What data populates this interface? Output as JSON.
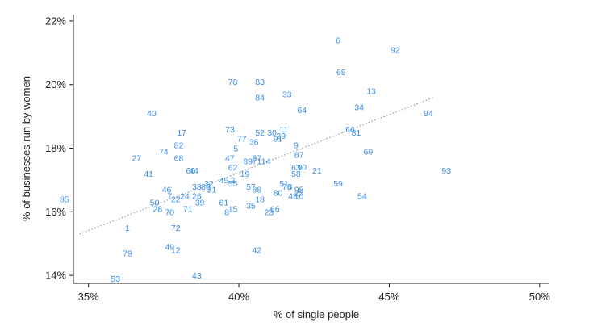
{
  "chart_data": {
    "type": "scatter",
    "title": "",
    "xlabel": "% of single people",
    "ylabel": "% of businesses run by women",
    "xlim": [
      34.5,
      50.3
    ],
    "ylim": [
      13.75,
      22.2
    ],
    "xticks": [
      35,
      40,
      45,
      50
    ],
    "xtick_labels": [
      "35%",
      "40%",
      "45%",
      "50%"
    ],
    "yticks": [
      14,
      16,
      18,
      20,
      22
    ],
    "ytick_labels": [
      "14%",
      "16%",
      "18%",
      "20%",
      "22%"
    ],
    "grid": false,
    "marker": "text-label",
    "colors": {
      "points": "#3a8ee6",
      "trend": "#8a8a8a",
      "axis": "#222222"
    },
    "trendline": {
      "style": "dotted",
      "x": [
        34.7,
        46.5
      ],
      "y": [
        15.3,
        19.6
      ]
    },
    "points": [
      {
        "label": "6",
        "x": 43.3,
        "y": 21.4
      },
      {
        "label": "92",
        "x": 45.2,
        "y": 21.1
      },
      {
        "label": "65",
        "x": 43.4,
        "y": 20.4
      },
      {
        "label": "78",
        "x": 39.8,
        "y": 20.1
      },
      {
        "label": "83",
        "x": 40.7,
        "y": 20.1
      },
      {
        "label": "13",
        "x": 44.4,
        "y": 19.8
      },
      {
        "label": "33",
        "x": 41.6,
        "y": 19.7
      },
      {
        "label": "84",
        "x": 40.7,
        "y": 19.6
      },
      {
        "label": "34",
        "x": 44.0,
        "y": 19.3
      },
      {
        "label": "64",
        "x": 42.1,
        "y": 19.2
      },
      {
        "label": "40",
        "x": 37.1,
        "y": 19.1
      },
      {
        "label": "94",
        "x": 46.3,
        "y": 19.1
      },
      {
        "label": "66",
        "x": 43.7,
        "y": 18.6
      },
      {
        "label": "81",
        "x": 43.9,
        "y": 18.5
      },
      {
        "label": "73",
        "x": 39.7,
        "y": 18.6
      },
      {
        "label": "11",
        "x": 41.5,
        "y": 18.6
      },
      {
        "label": "30",
        "x": 41.1,
        "y": 18.5
      },
      {
        "label": "17",
        "x": 38.1,
        "y": 18.5
      },
      {
        "label": "52",
        "x": 40.7,
        "y": 18.5
      },
      {
        "label": "29",
        "x": 41.4,
        "y": 18.4
      },
      {
        "label": "91",
        "x": 41.3,
        "y": 18.3
      },
      {
        "label": "77",
        "x": 40.1,
        "y": 18.3
      },
      {
        "label": "36",
        "x": 40.5,
        "y": 18.2
      },
      {
        "label": "9",
        "x": 41.9,
        "y": 18.1
      },
      {
        "label": "82",
        "x": 38.0,
        "y": 18.1
      },
      {
        "label": "5",
        "x": 39.9,
        "y": 18.0
      },
      {
        "label": "69",
        "x": 44.3,
        "y": 17.9
      },
      {
        "label": "74",
        "x": 37.5,
        "y": 17.9
      },
      {
        "label": "87",
        "x": 42.0,
        "y": 17.8
      },
      {
        "label": "27",
        "x": 36.6,
        "y": 17.7
      },
      {
        "label": "68",
        "x": 38.0,
        "y": 17.7
      },
      {
        "label": "47",
        "x": 39.7,
        "y": 17.7
      },
      {
        "label": "67",
        "x": 40.6,
        "y": 17.7
      },
      {
        "label": "14",
        "x": 40.9,
        "y": 17.6
      },
      {
        "label": "89",
        "x": 40.3,
        "y": 17.6
      },
      {
        "label": "71",
        "x": 40.6,
        "y": 17.6
      },
      {
        "label": "63",
        "x": 41.9,
        "y": 17.4
      },
      {
        "label": "90",
        "x": 42.1,
        "y": 17.4
      },
      {
        "label": "62",
        "x": 39.8,
        "y": 17.4
      },
      {
        "label": "21",
        "x": 42.6,
        "y": 17.3
      },
      {
        "label": "93",
        "x": 46.9,
        "y": 17.3
      },
      {
        "label": "60",
        "x": 38.4,
        "y": 17.3
      },
      {
        "label": "41",
        "x": 37.0,
        "y": 17.2
      },
      {
        "label": "19",
        "x": 40.2,
        "y": 17.2
      },
      {
        "label": "58",
        "x": 41.9,
        "y": 17.2
      },
      {
        "label": "44",
        "x": 38.5,
        "y": 17.3
      },
      {
        "label": "59",
        "x": 43.3,
        "y": 16.9
      },
      {
        "label": "2",
        "x": 39.8,
        "y": 17.0
      },
      {
        "label": "45",
        "x": 39.5,
        "y": 17.0
      },
      {
        "label": "51",
        "x": 41.5,
        "y": 16.9
      },
      {
        "label": "38",
        "x": 38.6,
        "y": 16.8
      },
      {
        "label": "32",
        "x": 39.0,
        "y": 16.9
      },
      {
        "label": "55",
        "x": 39.8,
        "y": 16.9
      },
      {
        "label": "3",
        "x": 41.7,
        "y": 16.8
      },
      {
        "label": "76",
        "x": 41.6,
        "y": 16.8
      },
      {
        "label": "86",
        "x": 38.9,
        "y": 16.8
      },
      {
        "label": "57",
        "x": 40.4,
        "y": 16.8
      },
      {
        "label": "88",
        "x": 40.6,
        "y": 16.7
      },
      {
        "label": "46",
        "x": 37.6,
        "y": 16.7
      },
      {
        "label": "31",
        "x": 39.1,
        "y": 16.7
      },
      {
        "label": "95",
        "x": 42.0,
        "y": 16.7
      },
      {
        "label": "25",
        "x": 42.0,
        "y": 16.6
      },
      {
        "label": "10",
        "x": 42.0,
        "y": 16.5
      },
      {
        "label": "7",
        "x": 37.7,
        "y": 16.5
      },
      {
        "label": "80",
        "x": 41.3,
        "y": 16.6
      },
      {
        "label": "48",
        "x": 41.8,
        "y": 16.5
      },
      {
        "label": "24",
        "x": 38.2,
        "y": 16.5
      },
      {
        "label": "22",
        "x": 37.9,
        "y": 16.4
      },
      {
        "label": "26",
        "x": 38.6,
        "y": 16.5
      },
      {
        "label": "54",
        "x": 44.1,
        "y": 16.5
      },
      {
        "label": "18",
        "x": 40.7,
        "y": 16.4
      },
      {
        "label": "50",
        "x": 37.2,
        "y": 16.3
      },
      {
        "label": "39",
        "x": 38.7,
        "y": 16.3
      },
      {
        "label": "61",
        "x": 39.5,
        "y": 16.3
      },
      {
        "label": "35",
        "x": 40.4,
        "y": 16.2
      },
      {
        "label": "85",
        "x": 34.2,
        "y": 16.4
      },
      {
        "label": "28",
        "x": 37.3,
        "y": 16.1
      },
      {
        "label": "15",
        "x": 39.8,
        "y": 16.1
      },
      {
        "label": "66b",
        "x": 41.2,
        "y": 16.1
      },
      {
        "label": "23",
        "x": 41.0,
        "y": 16.0
      },
      {
        "label": "70",
        "x": 37.7,
        "y": 16.0
      },
      {
        "label": "71b",
        "x": 38.3,
        "y": 16.1
      },
      {
        "label": "8",
        "x": 39.6,
        "y": 16.0
      },
      {
        "label": "1",
        "x": 36.3,
        "y": 15.5
      },
      {
        "label": "72",
        "x": 37.9,
        "y": 15.5
      },
      {
        "label": "49",
        "x": 37.7,
        "y": 14.9
      },
      {
        "label": "12",
        "x": 37.9,
        "y": 14.8
      },
      {
        "label": "42",
        "x": 40.6,
        "y": 14.8
      },
      {
        "label": "79",
        "x": 36.3,
        "y": 14.7
      },
      {
        "label": "43",
        "x": 38.6,
        "y": 14.0
      },
      {
        "label": "53",
        "x": 35.9,
        "y": 13.9
      }
    ]
  }
}
